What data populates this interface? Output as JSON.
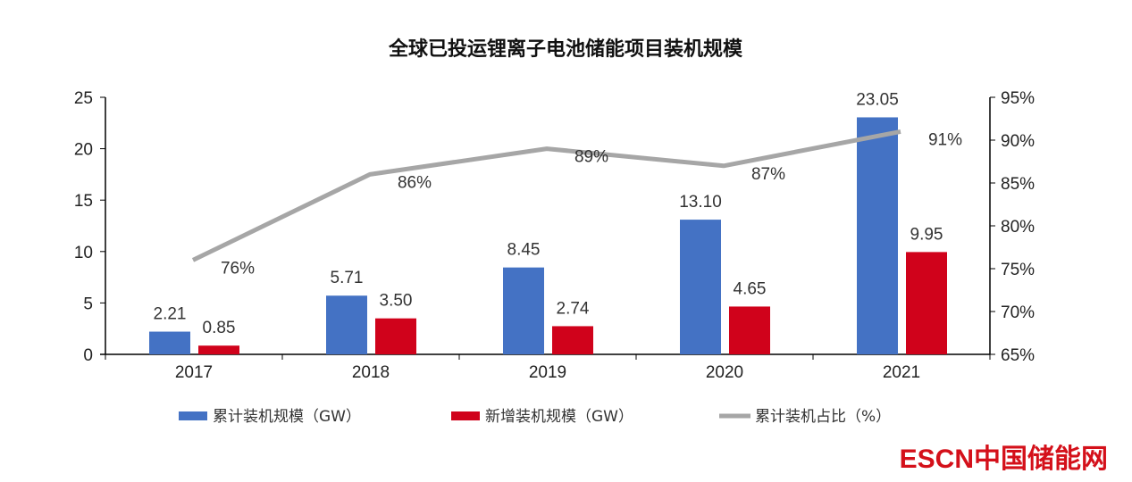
{
  "chart_data": {
    "type": "bar+line",
    "title": "全球已投运锂离子电池储能项目装机规模",
    "categories": [
      "2017",
      "2018",
      "2019",
      "2020",
      "2021"
    ],
    "series": [
      {
        "name": "累计装机规模（GW）",
        "type": "bar",
        "axis": "left",
        "color": "#4472C4",
        "values": [
          2.21,
          5.71,
          8.45,
          13.1,
          23.05
        ],
        "labels": [
          "2.21",
          "5.71",
          "8.45",
          "13.10",
          "23.05"
        ]
      },
      {
        "name": "新增装机规模（GW）",
        "type": "bar",
        "axis": "left",
        "color": "#D0021B",
        "values": [
          0.85,
          3.5,
          2.74,
          4.65,
          9.95
        ],
        "labels": [
          "0.85",
          "3.50",
          "2.74",
          "4.65",
          "9.95"
        ]
      },
      {
        "name": "累计装机占比（%）",
        "type": "line",
        "axis": "right",
        "color": "#A6A6A6",
        "values": [
          76,
          86,
          89,
          87,
          91
        ],
        "labels": [
          "76%",
          "86%",
          "89%",
          "87%",
          "91%"
        ]
      }
    ],
    "left_axis": {
      "ylim": [
        0,
        25
      ],
      "ticks": [
        "0",
        "5",
        "10",
        "15",
        "20",
        "25"
      ]
    },
    "right_axis": {
      "ylim": [
        65,
        95
      ],
      "ticks": [
        "65%",
        "70%",
        "75%",
        "80%",
        "85%",
        "90%",
        "95%"
      ]
    },
    "grid": false,
    "legend": "bottom"
  },
  "watermark": "ESCN中国储能网"
}
